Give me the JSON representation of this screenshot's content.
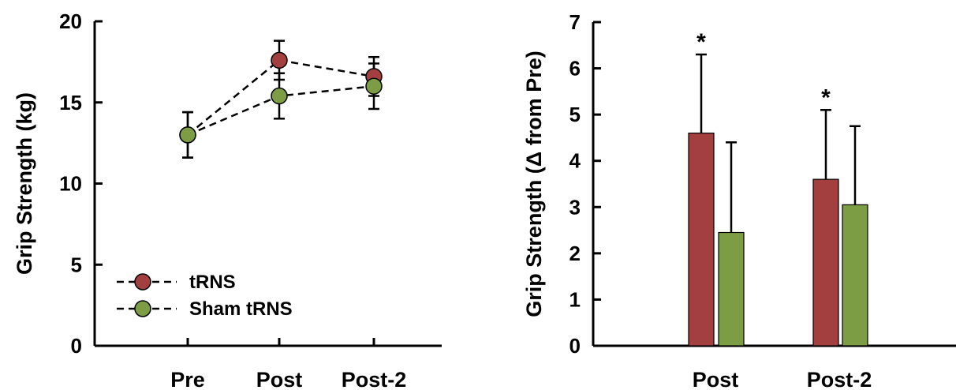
{
  "chart_data": [
    {
      "type": "line",
      "ylabel": "Grip Strength (kg)",
      "categories": [
        "Pre",
        "Post",
        "Post-2"
      ],
      "ylim": [
        0,
        20
      ],
      "yticks": [
        0,
        5,
        10,
        15,
        20
      ],
      "grid": false,
      "legend": "bottom-left",
      "series": [
        {
          "name": "tRNS",
          "color": "#a3403f",
          "values": [
            13.0,
            17.6,
            16.6
          ],
          "err": [
            1.4,
            1.2,
            1.2
          ]
        },
        {
          "name": "Sham tRNS",
          "color": "#7d9d44",
          "values": [
            13.0,
            15.4,
            16.0
          ],
          "err": [
            1.4,
            1.4,
            1.4
          ]
        }
      ]
    },
    {
      "type": "bar",
      "ylabel": "Grip Strength (Δ from Pre)",
      "categories": [
        "Post",
        "Post-2"
      ],
      "ylim": [
        0,
        7
      ],
      "yticks": [
        0,
        1,
        2,
        3,
        4,
        5,
        6,
        7
      ],
      "grid": false,
      "series": [
        {
          "name": "tRNS",
          "color": "#a3403f",
          "values": [
            4.6,
            3.6
          ],
          "err": [
            1.7,
            1.5
          ]
        },
        {
          "name": "Sham tRNS",
          "color": "#7d9d44",
          "values": [
            2.45,
            3.05
          ],
          "err": [
            1.95,
            1.7
          ]
        }
      ],
      "annotations": [
        "*",
        "*"
      ]
    }
  ]
}
